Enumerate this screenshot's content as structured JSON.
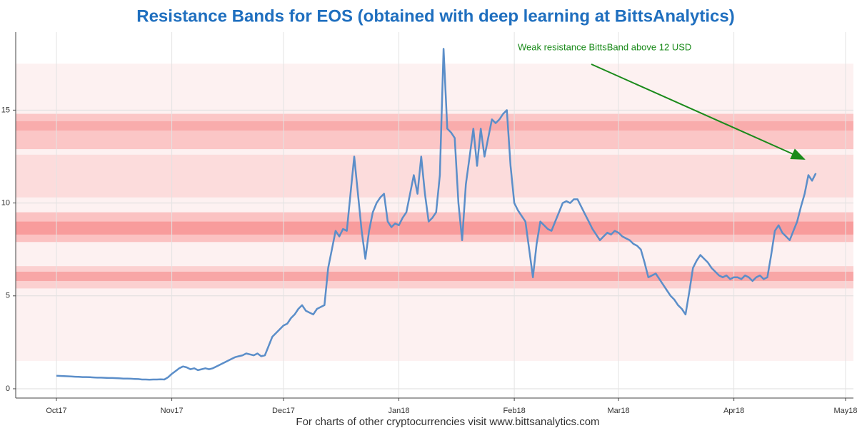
{
  "chart_data": {
    "type": "line",
    "title": "Resistance Bands for EOS (obtained with deep learning at BittsAnalytics)",
    "footer": "For charts of other cryptocurrencies visit www.bittsanalytics.com",
    "annotation": "Weak resistance BittsBand above 12 USD",
    "categories": [
      "Oct17",
      null,
      null,
      null,
      null,
      null,
      null,
      null,
      null,
      null,
      null,
      null,
      null,
      null,
      null,
      null,
      null,
      null,
      null,
      null,
      null,
      null,
      null,
      null,
      null,
      null,
      null,
      null,
      null,
      null,
      null,
      "Nov17",
      null,
      null,
      null,
      null,
      null,
      null,
      null,
      null,
      null,
      null,
      null,
      null,
      null,
      null,
      null,
      null,
      null,
      null,
      null,
      null,
      null,
      null,
      null,
      null,
      null,
      null,
      null,
      null,
      null,
      "Dec17",
      null,
      null,
      null,
      null,
      null,
      null,
      null,
      null,
      null,
      null,
      null,
      null,
      null,
      null,
      null,
      null,
      null,
      null,
      null,
      null,
      null,
      null,
      null,
      null,
      null,
      null,
      null,
      null,
      null,
      null,
      "Jan18",
      null,
      null,
      null,
      null,
      null,
      null,
      null,
      null,
      null,
      null,
      null,
      null,
      null,
      null,
      null,
      null,
      null,
      null,
      null,
      null,
      null,
      null,
      null,
      null,
      null,
      null,
      null,
      null,
      null,
      null,
      "Feb18",
      null,
      null,
      null,
      null,
      null,
      null,
      null,
      null,
      null,
      null,
      null,
      null,
      null,
      null,
      null,
      null,
      null,
      null,
      null,
      null,
      null,
      null,
      null,
      null,
      null,
      null,
      null,
      "Mar18",
      null,
      null,
      null,
      null,
      null,
      null,
      null,
      null,
      null,
      null,
      null,
      null,
      null,
      null,
      null,
      null,
      null,
      null,
      null,
      null,
      null,
      null,
      null,
      null,
      null,
      null,
      null,
      null,
      null,
      null,
      "Apr18",
      null,
      null,
      null,
      null,
      null,
      null,
      null,
      null,
      null,
      null,
      null,
      null,
      null,
      null,
      null,
      null,
      null,
      null,
      null,
      null,
      null,
      null,
      null,
      null,
      null,
      null,
      null,
      null,
      null,
      "May18"
    ],
    "series": [
      {
        "name": "EOS",
        "color": "#5b8ec9",
        "values": [
          0.7,
          0.69,
          0.68,
          0.67,
          0.66,
          0.65,
          0.64,
          0.63,
          0.63,
          0.62,
          0.61,
          0.6,
          0.6,
          0.59,
          0.58,
          0.58,
          0.57,
          0.56,
          0.55,
          0.55,
          0.54,
          0.53,
          0.52,
          0.5,
          0.5,
          0.49,
          0.5,
          0.5,
          0.51,
          0.5,
          0.62,
          0.8,
          0.95,
          1.1,
          1.2,
          1.15,
          1.05,
          1.1,
          1.0,
          1.05,
          1.1,
          1.05,
          1.1,
          1.2,
          1.3,
          1.4,
          1.5,
          1.6,
          1.7,
          1.75,
          1.8,
          1.9,
          1.85,
          1.8,
          1.9,
          1.75,
          1.8,
          2.3,
          2.8,
          3.0,
          3.2,
          3.4,
          3.5,
          3.8,
          4.0,
          4.3,
          4.5,
          4.2,
          4.1,
          4.0,
          4.3,
          4.4,
          4.5,
          6.5,
          7.5,
          8.5,
          8.2,
          8.6,
          8.5,
          10.5,
          12.5,
          10.5,
          8.5,
          7.0,
          8.5,
          9.5,
          10.0,
          10.3,
          10.5,
          9.0,
          8.7,
          8.9,
          8.8,
          9.2,
          9.5,
          10.5,
          11.5,
          10.5,
          12.5,
          10.5,
          9.0,
          9.2,
          9.5,
          11.5,
          18.3,
          14.0,
          13.8,
          13.5,
          10.0,
          8.0,
          11.0,
          12.5,
          14.0,
          12.0,
          14.0,
          12.5,
          13.5,
          14.5,
          14.3,
          14.5,
          14.8,
          15.0,
          12.0,
          10.0,
          9.6,
          9.3,
          9.0,
          7.5,
          6.0,
          7.8,
          9.0,
          8.8,
          8.6,
          8.5,
          9.0,
          9.5,
          10.0,
          10.1,
          10.0,
          10.2,
          10.2,
          9.8,
          9.4,
          9.0,
          8.6,
          8.3,
          8.0,
          8.2,
          8.4,
          8.3,
          8.5,
          8.4,
          8.2,
          8.1,
          8.0,
          7.8,
          7.7,
          7.5,
          6.8,
          6.0,
          6.1,
          6.2,
          5.9,
          5.6,
          5.3,
          5.0,
          4.8,
          4.5,
          4.3,
          4.0,
          5.2,
          6.5,
          6.9,
          7.2,
          7.0,
          6.8,
          6.5,
          6.3,
          6.1,
          6.0,
          6.1,
          5.9,
          6.0,
          6.0,
          5.9,
          6.1,
          6.0,
          5.8,
          6.0,
          6.1,
          5.9,
          6.0,
          7.2,
          8.5,
          8.8,
          8.4,
          8.2,
          8.0,
          8.5,
          9.0,
          9.8,
          10.5,
          11.5,
          11.2,
          11.6,
          null,
          null,
          null,
          null,
          null,
          null,
          null,
          null
        ]
      }
    ],
    "bands": [
      {
        "from": 1.5,
        "to": 17.5,
        "color": "#fdf1f1"
      },
      {
        "from": 10.3,
        "to": 12.6,
        "color": "#fcdcdc"
      },
      {
        "from": 12.9,
        "to": 14.8,
        "color": "#fbc6c6"
      },
      {
        "from": 13.9,
        "to": 14.4,
        "color": "#f9acac"
      },
      {
        "from": 7.9,
        "to": 9.5,
        "color": "#fbc2c2"
      },
      {
        "from": 8.3,
        "to": 9.0,
        "color": "#f89c9c"
      },
      {
        "from": 5.4,
        "to": 6.6,
        "color": "#fbd0d0"
      },
      {
        "from": 5.8,
        "to": 6.3,
        "color": "#f8a6a6"
      }
    ],
    "ylim": [
      -0.5,
      19.2
    ],
    "yticks": [
      0,
      5,
      10,
      15
    ],
    "grid": true
  }
}
